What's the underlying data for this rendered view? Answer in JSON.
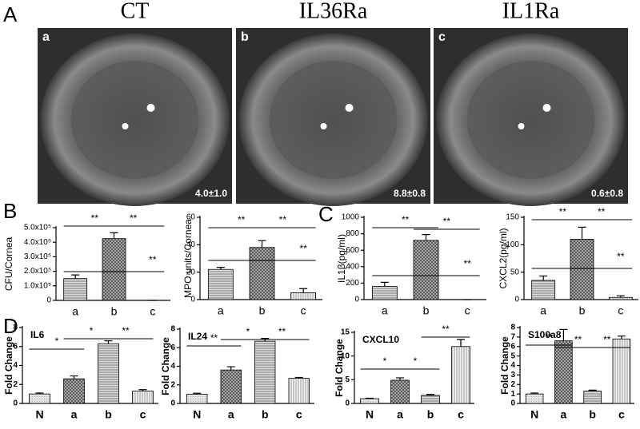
{
  "panel_labels": [
    "A",
    "B",
    "C",
    "D"
  ],
  "photos": [
    {
      "title": "CT",
      "label": "a",
      "score": "4.0±1.0"
    },
    {
      "title": "IL36Ra",
      "label": "b",
      "score": "8.8±0.8"
    },
    {
      "title": "IL1Ra",
      "label": "c",
      "score": "0.6±0.8"
    }
  ],
  "chart_data": [
    {
      "type": "bar",
      "y_label": "CFU/Cornea",
      "categories": [
        "a",
        "b",
        "c"
      ],
      "values": [
        150000,
        425000,
        0
      ],
      "errors": [
        25000,
        40000,
        0
      ],
      "fills": [
        "horizontal",
        "cross",
        "vertical"
      ],
      "ylim": [
        0,
        500000
      ],
      "yticks": [
        0,
        {
          "value": 100000,
          "label": "1.0x10⁵"
        },
        {
          "value": 200000,
          "label": "2.0x10⁵"
        },
        {
          "value": 300000,
          "label": "3.0x10⁵"
        },
        {
          "value": 400000,
          "label": "4.0x10⁵"
        },
        {
          "value": 500000,
          "label": "5.0x10⁵"
        }
      ],
      "annotations": [
        "**",
        "**",
        "**"
      ]
    },
    {
      "type": "bar",
      "y_label": "MPO units/Cornea",
      "categories": [
        "a",
        "b",
        "c"
      ],
      "values": [
        22,
        38,
        5
      ],
      "errors": [
        1.5,
        5,
        3
      ],
      "fills": [
        "horizontal",
        "cross",
        "vertical"
      ],
      "ylim": [
        0,
        60
      ],
      "yticks": [
        0,
        20,
        40,
        60
      ],
      "annotations": [
        "**",
        "**",
        "**"
      ]
    },
    {
      "type": "bar",
      "y_label": "IL1β(pg/ml)",
      "categories": [
        "a",
        "b",
        "c"
      ],
      "values": [
        160,
        720,
        0
      ],
      "errors": [
        50,
        70,
        0
      ],
      "fills": [
        "horizontal",
        "cross",
        "vertical"
      ],
      "ylim": [
        0,
        1000
      ],
      "yticks": [
        0,
        200,
        400,
        600,
        800,
        1000
      ],
      "annotations": [
        "**",
        "**",
        "**"
      ]
    },
    {
      "type": "bar",
      "y_label": "CXCL2(pg/ml)",
      "categories": [
        "a",
        "b",
        "c"
      ],
      "values": [
        35,
        110,
        4
      ],
      "errors": [
        8,
        22,
        3
      ],
      "fills": [
        "horizontal",
        "cross",
        "vertical"
      ],
      "ylim": [
        0,
        150
      ],
      "yticks": [
        0,
        50,
        100,
        150
      ],
      "annotations": [
        "**",
        "**",
        "**"
      ]
    },
    {
      "type": "bar",
      "title": "IL6",
      "y_label": "Fold Change",
      "categories": [
        "N",
        "a",
        "b",
        "c"
      ],
      "values": [
        1.0,
        2.6,
        6.3,
        1.3
      ],
      "errors": [
        0.1,
        0.3,
        0.3,
        0.15
      ],
      "fills": [
        "plain",
        "cross",
        "horizontal",
        "vertical"
      ],
      "ylim": [
        0,
        8
      ],
      "yticks": [
        0,
        2,
        4,
        6,
        8
      ],
      "annotations": [
        "*",
        "*",
        "**"
      ]
    },
    {
      "type": "bar",
      "title": "IL24",
      "y_label": "Fold Change",
      "categories": [
        "N",
        "a",
        "b",
        "c"
      ],
      "values": [
        1.0,
        3.6,
        6.7,
        2.7
      ],
      "errors": [
        0.1,
        0.35,
        0.3,
        0.1
      ],
      "fills": [
        "plain",
        "cross",
        "horizontal",
        "vertical"
      ],
      "ylim": [
        0,
        8
      ],
      "yticks": [
        0,
        2,
        4,
        6,
        8
      ],
      "annotations": [
        "**",
        "*",
        "**"
      ]
    },
    {
      "type": "bar",
      "title": "CXCL10",
      "y_label": "Fold Change",
      "categories": [
        "N",
        "a",
        "b",
        "c"
      ],
      "values": [
        1.0,
        4.9,
        1.7,
        12
      ],
      "errors": [
        0.1,
        0.5,
        0.2,
        1.5
      ],
      "fills": [
        "plain",
        "cross",
        "horizontal",
        "vertical"
      ],
      "ylim": [
        0,
        15
      ],
      "yticks": [
        0,
        5,
        10,
        15
      ],
      "annotations": [
        "*",
        "*",
        "**"
      ]
    },
    {
      "type": "bar",
      "title": "S100a8",
      "y_label": "Fold Change",
      "categories": [
        "N",
        "a",
        "b",
        "c"
      ],
      "values": [
        1.0,
        6.6,
        1.3,
        6.8
      ],
      "errors": [
        0.1,
        1.2,
        0.1,
        0.3
      ],
      "fills": [
        "plain",
        "cross",
        "horizontal",
        "vertical"
      ],
      "ylim": [
        0,
        8
      ],
      "yticks": [
        0,
        1,
        2,
        3,
        4,
        5,
        6,
        7,
        8
      ],
      "annotations": [
        "**",
        "**",
        "**"
      ]
    }
  ]
}
